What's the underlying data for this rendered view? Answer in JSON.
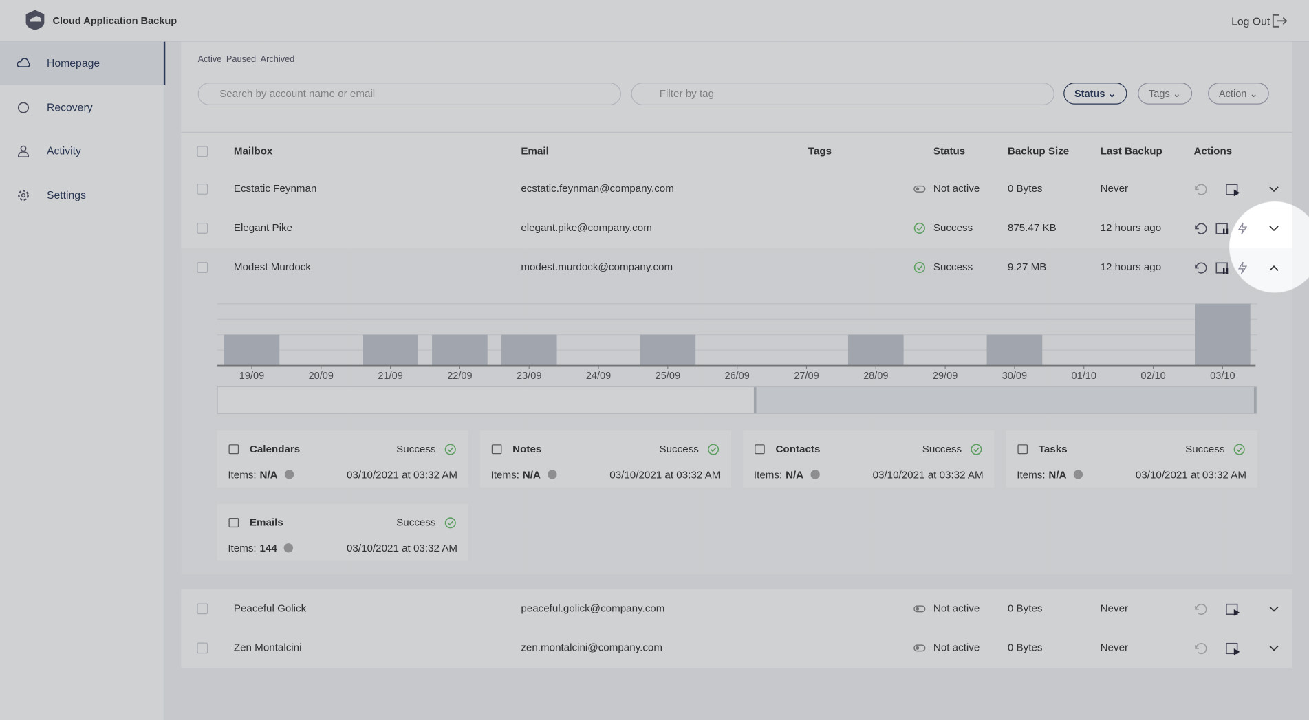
{
  "header": {
    "app_name": "Cloud Application Backup",
    "logout": "Log Out"
  },
  "sidebar": {
    "items": [
      "Homepage",
      "Recovery",
      "Activity",
      "Settings"
    ]
  },
  "toolbar": {
    "tabs": [
      "Active",
      "Paused",
      "Archived"
    ],
    "search_placeholder": "Search by account name or email",
    "tag_placeholder": "Filter by tag",
    "filters": [
      "Status",
      "Tags",
      "Action"
    ]
  },
  "table": {
    "columns": [
      "Mailbox",
      "Email",
      "Tags",
      "Status",
      "Backup Size",
      "Last Backup",
      "Actions"
    ],
    "rows": [
      {
        "mailbox": "Ecstatic Feynman",
        "email": "ecstatic.feynman@company.com",
        "status": "Not active",
        "size": "0 Bytes",
        "last": "Never"
      },
      {
        "mailbox": "Elegant Pike",
        "email": "elegant.pike@company.com",
        "status": "Success",
        "size": "875.47 KB",
        "last": "12 hours ago"
      },
      {
        "mailbox": "Modest Murdock",
        "email": "modest.murdock@company.com",
        "status": "Success",
        "size": "9.27 MB",
        "last": "12 hours ago"
      },
      {
        "mailbox": "Peaceful Golick",
        "email": "peaceful.golick@company.com",
        "status": "Not active",
        "size": "0 Bytes",
        "last": "Never"
      },
      {
        "mailbox": "Zen Montalcini",
        "email": "zen.montalcini@company.com",
        "status": "Not active",
        "size": "0 Bytes",
        "last": "Never"
      }
    ]
  },
  "expanded": {
    "chart_data": {
      "type": "bar",
      "categories": [
        "19/09",
        "20/09",
        "21/09",
        "22/09",
        "23/09",
        "24/09",
        "25/09",
        "26/09",
        "27/09",
        "28/09",
        "29/09",
        "30/09",
        "01/10",
        "02/10",
        "03/10"
      ],
      "values": [
        1,
        0,
        1,
        1,
        1,
        0,
        1,
        0,
        0,
        1,
        0,
        1,
        0,
        0,
        2
      ],
      "ylim": [
        0,
        2
      ],
      "color": "#c3c8cf"
    },
    "items_label": "Items:",
    "cards": [
      {
        "name": "Calendars",
        "status": "Success",
        "items": "N/A",
        "time": "03/10/2021 at 03:32 AM"
      },
      {
        "name": "Notes",
        "status": "Success",
        "items": "N/A",
        "time": "03/10/2021 at 03:32 AM"
      },
      {
        "name": "Contacts",
        "status": "Success",
        "items": "N/A",
        "time": "03/10/2021 at 03:32 AM"
      },
      {
        "name": "Tasks",
        "status": "Success",
        "items": "N/A",
        "time": "03/10/2021 at 03:32 AM"
      },
      {
        "name": "Emails",
        "status": "Success",
        "items": "144",
        "time": "03/10/2021 at 03:32 AM"
      }
    ]
  }
}
